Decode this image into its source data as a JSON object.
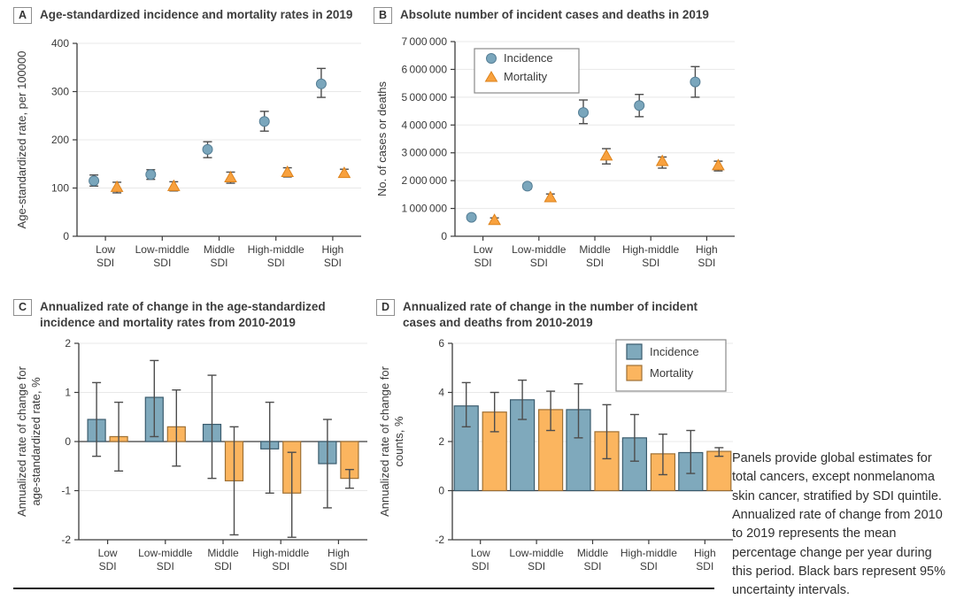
{
  "panels": [
    {
      "label": "A",
      "title": "Age-standardized incidence and mortality rates in 2019"
    },
    {
      "label": "B",
      "title": "Absolute number of incident cases and deaths in 2019"
    },
    {
      "label": "C",
      "title": "Annualized rate of change in the age-standardized incidence and mortality rates from 2010-2019"
    },
    {
      "label": "D",
      "title": "Annualized rate of change in the number of incident cases and deaths from 2010-2019"
    }
  ],
  "caption": "Panels provide global estimates for total cancers, except nonmelanoma skin cancer, stratified by SDI quintile. Annualized rate of change from 2010 to 2019 represents the mean percentage change per year during this period. Black bars represent 95% uncertainty intervals.",
  "colors": {
    "grid": "#e8e8e8",
    "axis": "#3c3c3c",
    "error": "#4d4d4d",
    "incidence": "#7aa6bc",
    "incidence_edge": "#567f96",
    "mortality": "#f8a13e",
    "mortality_edge": "#dd831c",
    "bar_incidence": "#7fa9bc",
    "bar_incidence_edge": "#3a5b6d",
    "bar_mortality": "#fbb55f",
    "bar_mortality_edge": "#9e7034",
    "legend_border": "#8a8a8a"
  },
  "chart_data": [
    {
      "id": "A",
      "type": "scatter",
      "title": "Age-standardized incidence and mortality rates in 2019",
      "categories": [
        "Low",
        "Low-middle",
        "Middle",
        "High-middle",
        "High"
      ],
      "category_line2": "SDI",
      "ylabel": [
        "Age-standardized rate, per 100000"
      ],
      "ylim": [
        0,
        400
      ],
      "yticks": [
        0,
        100,
        200,
        300,
        400
      ],
      "yticklabels": [
        "0",
        "100",
        "200",
        "300",
        "400"
      ],
      "grid": true,
      "zero_line": false,
      "legend": null,
      "series": [
        {
          "name": "Incidence",
          "marker": "circle",
          "values": [
            115,
            128,
            180,
            238,
            316
          ],
          "ci": [
            [
              104,
              127
            ],
            [
              118,
              138
            ],
            [
              163,
              196
            ],
            [
              218,
              259
            ],
            [
              288,
              348
            ]
          ]
        },
        {
          "name": "Mortality",
          "marker": "triangle",
          "values": [
            102,
            104,
            122,
            133,
            131
          ],
          "ci": [
            [
              90,
              112
            ],
            [
              94,
              113
            ],
            [
              110,
              133
            ],
            [
              123,
              142
            ],
            [
              123,
              139
            ]
          ]
        }
      ]
    },
    {
      "id": "B",
      "type": "scatter",
      "title": "Absolute number of incident cases and deaths in 2019",
      "categories": [
        "Low",
        "Low-middle",
        "Middle",
        "High-middle",
        "High"
      ],
      "category_line2": "SDI",
      "ylabel": [
        "No. of cases or deaths"
      ],
      "ylim": [
        0,
        7000000
      ],
      "yticks": [
        0,
        1000000,
        2000000,
        3000000,
        4000000,
        5000000,
        6000000,
        7000000
      ],
      "yticklabels": [
        "0",
        "1 000 000",
        "2 000 000",
        "3 000 000",
        "4 000 000",
        "5 000 000",
        "6 000 000",
        "7 000 000"
      ],
      "grid": true,
      "zero_line": false,
      "legend": {
        "position": "top-left",
        "marker_style": "series",
        "width": 118,
        "height": 50
      },
      "series": [
        {
          "name": "Incidence",
          "marker": "circle",
          "values": [
            680000,
            1800000,
            4450000,
            4700000,
            5550000
          ],
          "ci": [
            [
              620000,
              740000
            ],
            [
              1700000,
              1900000
            ],
            [
              4050000,
              4900000
            ],
            [
              4300000,
              5100000
            ],
            [
              5000000,
              6100000
            ]
          ]
        },
        {
          "name": "Mortality",
          "marker": "triangle",
          "values": [
            580000,
            1400000,
            2900000,
            2700000,
            2550000
          ],
          "ci": [
            [
              500000,
              660000
            ],
            [
              1280000,
              1520000
            ],
            [
              2600000,
              3150000
            ],
            [
              2450000,
              2850000
            ],
            [
              2350000,
              2700000
            ]
          ]
        }
      ]
    },
    {
      "id": "C",
      "type": "bar",
      "title": "Annualized rate of change in the age-standardized incidence and mortality rates from 2010-2019",
      "categories": [
        "Low",
        "Low-middle",
        "Middle",
        "High-middle",
        "High"
      ],
      "category_line2": "SDI",
      "ylabel": [
        "Annualized rate of change for",
        "age-standardized rate, %"
      ],
      "ylim": [
        -2,
        2
      ],
      "yticks": [
        -2,
        -1,
        0,
        1,
        2
      ],
      "yticklabels": [
        "-2",
        "-1",
        "0",
        "1",
        "2"
      ],
      "grid": true,
      "zero_line": true,
      "legend": null,
      "series": [
        {
          "name": "Incidence",
          "values": [
            0.45,
            0.9,
            0.35,
            -0.15,
            -0.45
          ],
          "ci": [
            [
              -0.3,
              1.2
            ],
            [
              0.1,
              1.65
            ],
            [
              -0.75,
              1.35
            ],
            [
              -1.05,
              0.8
            ],
            [
              -1.35,
              0.45
            ]
          ]
        },
        {
          "name": "Mortality",
          "values": [
            0.1,
            0.3,
            -0.8,
            -1.05,
            -0.75
          ],
          "ci": [
            [
              -0.6,
              0.8
            ],
            [
              -0.5,
              1.05
            ],
            [
              -1.9,
              0.3
            ],
            [
              -1.95,
              -0.22
            ],
            [
              -0.95,
              -0.57
            ]
          ]
        }
      ]
    },
    {
      "id": "D",
      "type": "bar",
      "title": "Annualized rate of change in the number of incident cases and deaths from 2010-2019",
      "categories": [
        "Low",
        "Low-middle",
        "Middle",
        "High-middle",
        "High"
      ],
      "category_line2": "SDI",
      "ylabel": [
        "Annualized rate of change for",
        "counts, %"
      ],
      "ylim": [
        -2,
        6
      ],
      "yticks": [
        -2,
        0,
        2,
        4,
        6
      ],
      "yticklabels": [
        "-2",
        "0",
        "2",
        "4",
        "6"
      ],
      "grid": true,
      "zero_line": true,
      "legend": {
        "position": "top-right",
        "marker_style": "square",
        "width": 124,
        "height": 58
      },
      "series": [
        {
          "name": "Incidence",
          "values": [
            3.45,
            3.7,
            3.3,
            2.15,
            1.55
          ],
          "ci": [
            [
              2.6,
              4.4
            ],
            [
              2.9,
              4.5
            ],
            [
              2.15,
              4.35
            ],
            [
              1.2,
              3.1
            ],
            [
              0.7,
              2.45
            ]
          ]
        },
        {
          "name": "Mortality",
          "values": [
            3.2,
            3.3,
            2.4,
            1.5,
            1.6
          ],
          "ci": [
            [
              2.4,
              4.0
            ],
            [
              2.45,
              4.05
            ],
            [
              1.3,
              3.5
            ],
            [
              0.65,
              2.3
            ],
            [
              1.4,
              1.75
            ]
          ]
        }
      ]
    }
  ]
}
